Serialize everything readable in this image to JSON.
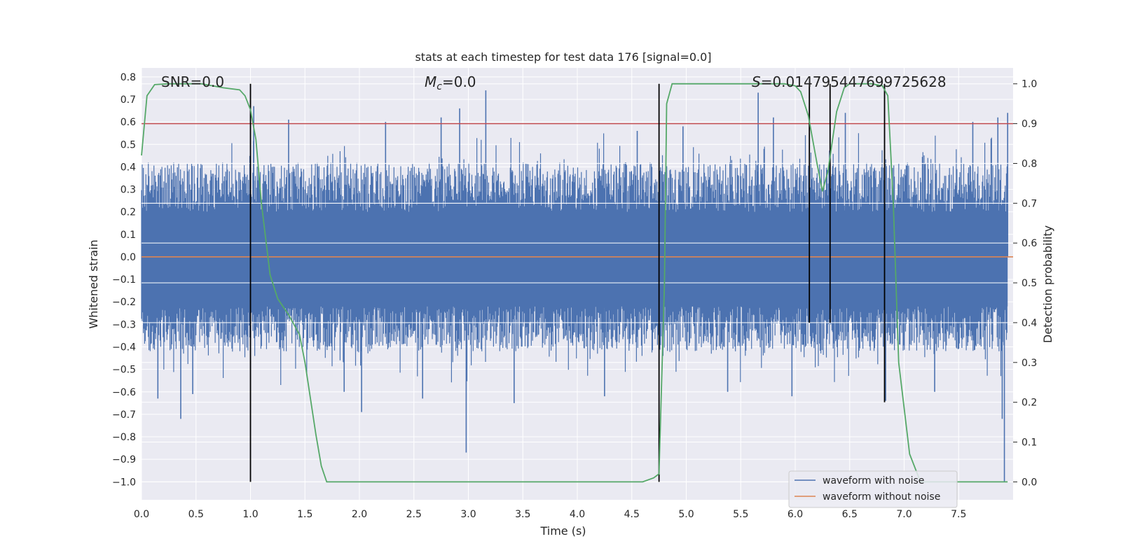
{
  "chart_data": {
    "type": "line",
    "title": "stats at each timestep for test data 176 [signal=0.0]",
    "xlabel": "Time (s)",
    "ylabel": "Whitened strain",
    "y2label": "Detection probability",
    "xlim": [
      0.0,
      8.0
    ],
    "ylim": [
      -1.08,
      0.84
    ],
    "y2lim": [
      -0.045,
      1.04
    ],
    "xticks": [
      "0.0",
      "0.5",
      "1.0",
      "1.5",
      "2.0",
      "2.5",
      "3.0",
      "3.5",
      "4.0",
      "4.5",
      "5.0",
      "5.5",
      "6.0",
      "6.5",
      "7.0",
      "7.5"
    ],
    "yticks": [
      "0.8",
      "0.7",
      "0.6",
      "0.5",
      "0.4",
      "0.3",
      "0.2",
      "0.1",
      "0.0",
      "−0.1",
      "−0.2",
      "−0.3",
      "−0.4",
      "−0.5",
      "−0.6",
      "−0.7",
      "−0.8",
      "−0.9",
      "−1.0"
    ],
    "y2ticks": [
      "1.0",
      "0.9",
      "0.8",
      "0.7",
      "0.6",
      "0.5",
      "0.4",
      "0.3",
      "0.2",
      "0.1",
      "0.0"
    ],
    "annotations": {
      "snr": "SNR=0.0",
      "mc": "=0.0",
      "mc_symbol": "M",
      "mc_sub": "c",
      "s": "=0.014795447699725628",
      "s_symbol": "S"
    },
    "legend": {
      "position": "lower-right",
      "entries": [
        "waveform with noise",
        "waveform without noise"
      ]
    },
    "series": [
      {
        "name": "waveform with noise",
        "color": "#4c72b0",
        "axis": "left",
        "description": "whitened noisy strain, dense noise roughly within ±0.45 with spikes",
        "spikes": [
          {
            "x": 0.36,
            "y": -0.72
          },
          {
            "x": 0.15,
            "y": -0.63
          },
          {
            "x": 0.47,
            "y": -0.61
          },
          {
            "x": 1.03,
            "y": 0.67
          },
          {
            "x": 1.35,
            "y": 0.61
          },
          {
            "x": 1.86,
            "y": -0.6
          },
          {
            "x": 2.02,
            "y": -0.69
          },
          {
            "x": 2.24,
            "y": 0.6
          },
          {
            "x": 2.58,
            "y": -0.63
          },
          {
            "x": 2.75,
            "y": 0.62
          },
          {
            "x": 2.92,
            "y": 0.66
          },
          {
            "x": 2.98,
            "y": -0.87
          },
          {
            "x": 3.16,
            "y": 0.74
          },
          {
            "x": 3.42,
            "y": -0.65
          },
          {
            "x": 4.25,
            "y": -0.62
          },
          {
            "x": 4.55,
            "y": 0.56
          },
          {
            "x": 4.97,
            "y": 0.58
          },
          {
            "x": 5.38,
            "y": -0.6
          },
          {
            "x": 5.66,
            "y": 0.73
          },
          {
            "x": 5.8,
            "y": 0.62
          },
          {
            "x": 5.97,
            "y": -0.62
          },
          {
            "x": 6.46,
            "y": 0.64
          },
          {
            "x": 6.83,
            "y": -0.64
          },
          {
            "x": 7.28,
            "y": -0.6
          },
          {
            "x": 7.63,
            "y": 0.6
          },
          {
            "x": 7.86,
            "y": 0.62
          },
          {
            "x": 7.92,
            "y": -1.0
          },
          {
            "x": 7.95,
            "y": 0.64
          },
          {
            "x": 7.9,
            "y": -0.72
          }
        ]
      },
      {
        "name": "waveform without noise",
        "color": "#dd8452",
        "axis": "left",
        "x": [
          0.0,
          8.0
        ],
        "y": [
          0.0,
          0.0
        ]
      },
      {
        "name": "Detection probability",
        "color": "#55a868",
        "axis": "right",
        "x": [
          0.0,
          0.05,
          0.12,
          0.25,
          0.55,
          0.75,
          0.9,
          0.95,
          1.0,
          1.05,
          1.1,
          1.18,
          1.25,
          1.35,
          1.45,
          1.5,
          1.6,
          1.65,
          1.7,
          1.75,
          2.0,
          3.0,
          4.0,
          4.6,
          4.7,
          4.75,
          4.8,
          4.82,
          4.87,
          5.0,
          5.5,
          5.9,
          6.0,
          6.05,
          6.12,
          6.2,
          6.25,
          6.3,
          6.38,
          6.45,
          6.5,
          6.7,
          6.8,
          6.85,
          6.9,
          6.95,
          7.05,
          7.15,
          7.25,
          7.5,
          7.95
        ],
        "y": [
          0.82,
          0.97,
          0.998,
          1.0,
          1.0,
          0.99,
          0.985,
          0.97,
          0.935,
          0.86,
          0.7,
          0.52,
          0.46,
          0.42,
          0.37,
          0.3,
          0.12,
          0.04,
          0.0,
          0.0,
          0.0,
          0.0,
          0.0,
          0.0,
          0.01,
          0.02,
          0.5,
          0.95,
          1.0,
          1.0,
          1.0,
          1.0,
          0.995,
          0.98,
          0.92,
          0.8,
          0.73,
          0.78,
          0.93,
          0.99,
          1.0,
          1.0,
          0.995,
          0.97,
          0.7,
          0.3,
          0.07,
          0.0,
          0.0,
          0.0,
          0.0
        ]
      },
      {
        "name": "threshold",
        "color": "#c44e52",
        "axis": "right",
        "x": [
          0.0,
          8.0
        ],
        "y": [
          0.9,
          0.9
        ]
      }
    ],
    "vertical_lines": [
      {
        "x": 1.0,
        "color": "#000000",
        "range": [
          0.0,
          1.0
        ]
      },
      {
        "x": 4.75,
        "color": "#000000",
        "range": [
          0.0,
          1.0
        ]
      },
      {
        "x": 6.13,
        "color": "#000000",
        "range": [
          0.4,
          1.0
        ]
      },
      {
        "x": 6.32,
        "color": "#000000",
        "range": [
          0.4,
          1.0
        ]
      },
      {
        "x": 6.82,
        "color": "#000000",
        "range": [
          0.2,
          1.0
        ]
      }
    ]
  }
}
